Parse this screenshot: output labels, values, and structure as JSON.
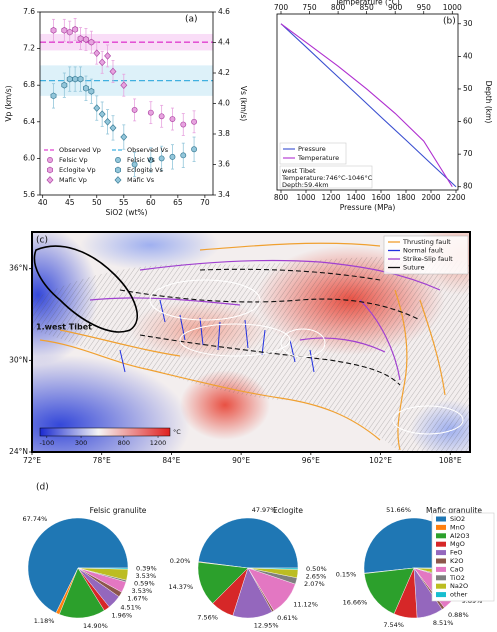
{
  "chart_data": [
    {
      "type": "scatter",
      "title": "(a)",
      "xlabel": "SiO2 (wt%)",
      "ylabel": "Vp (km/s)",
      "y2label": "Vs (km/s)",
      "xlim": [
        39.5,
        71.5
      ],
      "xticks": [
        40,
        45,
        50,
        55,
        60,
        65,
        70
      ],
      "ylim": [
        5.6,
        7.6
      ],
      "yticks": [
        5.6,
        {
          "value": 6,
          "label": "6.0"
        },
        6.4,
        6.8,
        7.2,
        7.6
      ],
      "y2lim": [
        3.4,
        4.6
      ],
      "y2ticks": [
        3.4,
        3.6,
        3.8,
        {
          "value": 4,
          "label": "4.0"
        },
        4.2,
        4.4,
        4.6
      ],
      "observed": [
        {
          "name": "Observed Vp",
          "value": 7.27,
          "range": [
            7.18,
            7.36
          ],
          "color": "#e040d0",
          "axis": "y"
        },
        {
          "name": "Observed Vs",
          "value": 4.15,
          "range": [
            4.05,
            4.25
          ],
          "color": "#40b0e0",
          "axis": "y2"
        }
      ],
      "series": [
        {
          "name": "Felsic Vp",
          "marker": "o",
          "color": "#e7a3df",
          "edge": "#b04aa6",
          "axis": "y",
          "x": [
            57,
            60,
            62,
            64,
            66,
            68
          ],
          "values": [
            6.53,
            6.5,
            6.46,
            6.43,
            6.37,
            6.4
          ],
          "errors": [
            0.12,
            0.12,
            0.12,
            0.12,
            0.12,
            0.12
          ]
        },
        {
          "name": "Eclogite Vp",
          "marker": "h",
          "color": "#e7a3df",
          "edge": "#b04aa6",
          "axis": "y",
          "x": [
            42,
            44,
            45,
            46,
            47,
            48,
            49
          ],
          "values": [
            7.4,
            7.4,
            7.38,
            7.41,
            7.31,
            7.3,
            7.27
          ],
          "errors": [
            0.12,
            0.12,
            0.12,
            0.12,
            0.12,
            0.12,
            0.12
          ]
        },
        {
          "name": "Mafic Vp",
          "marker": "D",
          "color": "#e7a3df",
          "edge": "#b04aa6",
          "axis": "y",
          "x": [
            50,
            51,
            52,
            53,
            55
          ],
          "values": [
            7.15,
            7.05,
            7.12,
            6.95,
            6.8
          ],
          "errors": [
            0.12,
            0.12,
            0.12,
            0.12,
            0.12
          ]
        },
        {
          "name": "Felsic Vs",
          "marker": "o",
          "color": "#93c6da",
          "edge": "#3d7f99",
          "axis": "y2",
          "x": [
            57,
            60,
            62,
            64,
            66,
            68
          ],
          "values": [
            3.6,
            3.63,
            3.64,
            3.65,
            3.66,
            3.7
          ],
          "errors": [
            0.08,
            0.08,
            0.08,
            0.08,
            0.08,
            0.08
          ]
        },
        {
          "name": "Eclogite Vs",
          "marker": "h",
          "color": "#93c6da",
          "edge": "#3d7f99",
          "axis": "y2",
          "x": [
            42,
            44,
            45,
            46,
            47,
            48,
            49
          ],
          "values": [
            4.05,
            4.12,
            4.16,
            4.16,
            4.16,
            4.1,
            4.08
          ],
          "errors": [
            0.08,
            0.08,
            0.08,
            0.08,
            0.08,
            0.08,
            0.08
          ]
        },
        {
          "name": "Mafic Vs",
          "marker": "D",
          "color": "#93c6da",
          "edge": "#3d7f99",
          "axis": "y2",
          "x": [
            50,
            51,
            52,
            53,
            55
          ],
          "values": [
            3.97,
            3.93,
            3.88,
            3.84,
            3.78
          ],
          "errors": [
            0.08,
            0.08,
            0.08,
            0.08,
            0.08
          ]
        }
      ]
    },
    {
      "type": "line",
      "title": "(b)",
      "xlabel": "Pressure (MPa)",
      "x2label": "Temperature (°C)",
      "ylabel": "Depth (km)",
      "xlim": [
        768,
        2216
      ],
      "xticks": [
        800,
        1000,
        1200,
        1400,
        1600,
        1800,
        2000,
        2200
      ],
      "x2lim": [
        693,
        1010
      ],
      "x2ticks": [
        700,
        750,
        800,
        850,
        900,
        950,
        1000
      ],
      "ylim": [
        27,
        81
      ],
      "yticks": [
        30,
        40,
        50,
        60,
        70,
        80
      ],
      "y_inverted": true,
      "series": [
        {
          "name": "Pressure",
          "color": "#3a4fd0",
          "axis": "x",
          "x": [
            800,
            1000,
            1200,
            1400,
            1600,
            1800,
            2000,
            2200
          ],
          "values": [
            30,
            37.1,
            44.3,
            51.4,
            58.6,
            65.7,
            72.9,
            80
          ]
        },
        {
          "name": "Temperature",
          "color": "#b030d0",
          "axis": "x2",
          "x": [
            700,
            750,
            800,
            850,
            900,
            950,
            1000
          ],
          "values": [
            30,
            36.5,
            43,
            50,
            57.5,
            66,
            80
          ]
        }
      ],
      "annotation": [
        "west Tibet",
        "Temperature:746°C-1046°C",
        "Depth:59.4km"
      ]
    },
    {
      "type": "map",
      "title": "(c)",
      "lonlim": [
        72,
        109.7
      ],
      "latlim": [
        24,
        38.4
      ],
      "lonticks": [
        {
          "value": 72,
          "label": "72°E"
        },
        {
          "value": 78,
          "label": "78°E"
        },
        {
          "value": 84,
          "label": "84°E"
        },
        {
          "value": 90,
          "label": "90°E"
        },
        {
          "value": 96,
          "label": "96°E"
        },
        {
          "value": 102,
          "label": "102°E"
        },
        {
          "value": 108,
          "label": "108°E"
        }
      ],
      "latticks": [
        {
          "value": 24,
          "label": "24°N"
        },
        {
          "value": 30,
          "label": "30°N"
        },
        {
          "value": 36,
          "label": "36°N"
        }
      ],
      "legend": [
        {
          "name": "Thrusting fault",
          "color": "#f0a030"
        },
        {
          "name": "Normal fault",
          "color": "#2030e0"
        },
        {
          "name": "Strike-Slip fault",
          "color": "#a040d0"
        },
        {
          "name": "Suture",
          "color": "#111111"
        }
      ],
      "colorbar": {
        "lim": [
          -180,
          1340
        ],
        "ticks": [
          -100,
          300,
          800,
          1200
        ],
        "unit": "°C"
      },
      "labels": [
        "1.west Tibet"
      ]
    },
    {
      "type": "pie",
      "title": "(d)",
      "categories": [
        "SiO2",
        "MnO",
        "Al2O3",
        "MgO",
        "FeO",
        "K2O",
        "CaO",
        "TiO2",
        "Na2O",
        "other"
      ],
      "colors": [
        "#1f77b4",
        "#ff7f0e",
        "#2ca02c",
        "#d62728",
        "#9467bd",
        "#8c564b",
        "#e377c2",
        "#7f7f7f",
        "#bcbd22",
        "#17becf"
      ],
      "series": [
        {
          "name": "Felsic granulite",
          "values": [
            67.74,
            1.18,
            14.9,
            1.96,
            4.51,
            1.67,
            3.53,
            0.59,
            3.53,
            0.39
          ],
          "value_labels": [
            "67.74%",
            "1.18%",
            "14.90%",
            "1.96%",
            "4.51%",
            "1.67%",
            "3.53%",
            "0.59%",
            "3.53%",
            "0.39%"
          ]
        },
        {
          "name": "Eclogite",
          "values": [
            47.97,
            0.2,
            14.37,
            7.56,
            12.95,
            0.61,
            11.12,
            2.07,
            2.65,
            0.5
          ],
          "value_labels": [
            "47.97%",
            "0.20%",
            "14.37%",
            "7.56%",
            "12.95%",
            "0.61%",
            "11.12%",
            "2.07%",
            "2.65%",
            "0.50%"
          ]
        },
        {
          "name": "Mafic granulite",
          "values": [
            51.66,
            0.15,
            16.66,
            7.54,
            8.51,
            0.88,
            9.89,
            0.88,
            3.33,
            0.5
          ],
          "value_labels": [
            "51.66%",
            "0.15%",
            "16.66%",
            "7.54%",
            "8.51%",
            "0.88%",
            "9.89%",
            "0.88%",
            "3.33%",
            "0.50%"
          ]
        }
      ]
    }
  ]
}
